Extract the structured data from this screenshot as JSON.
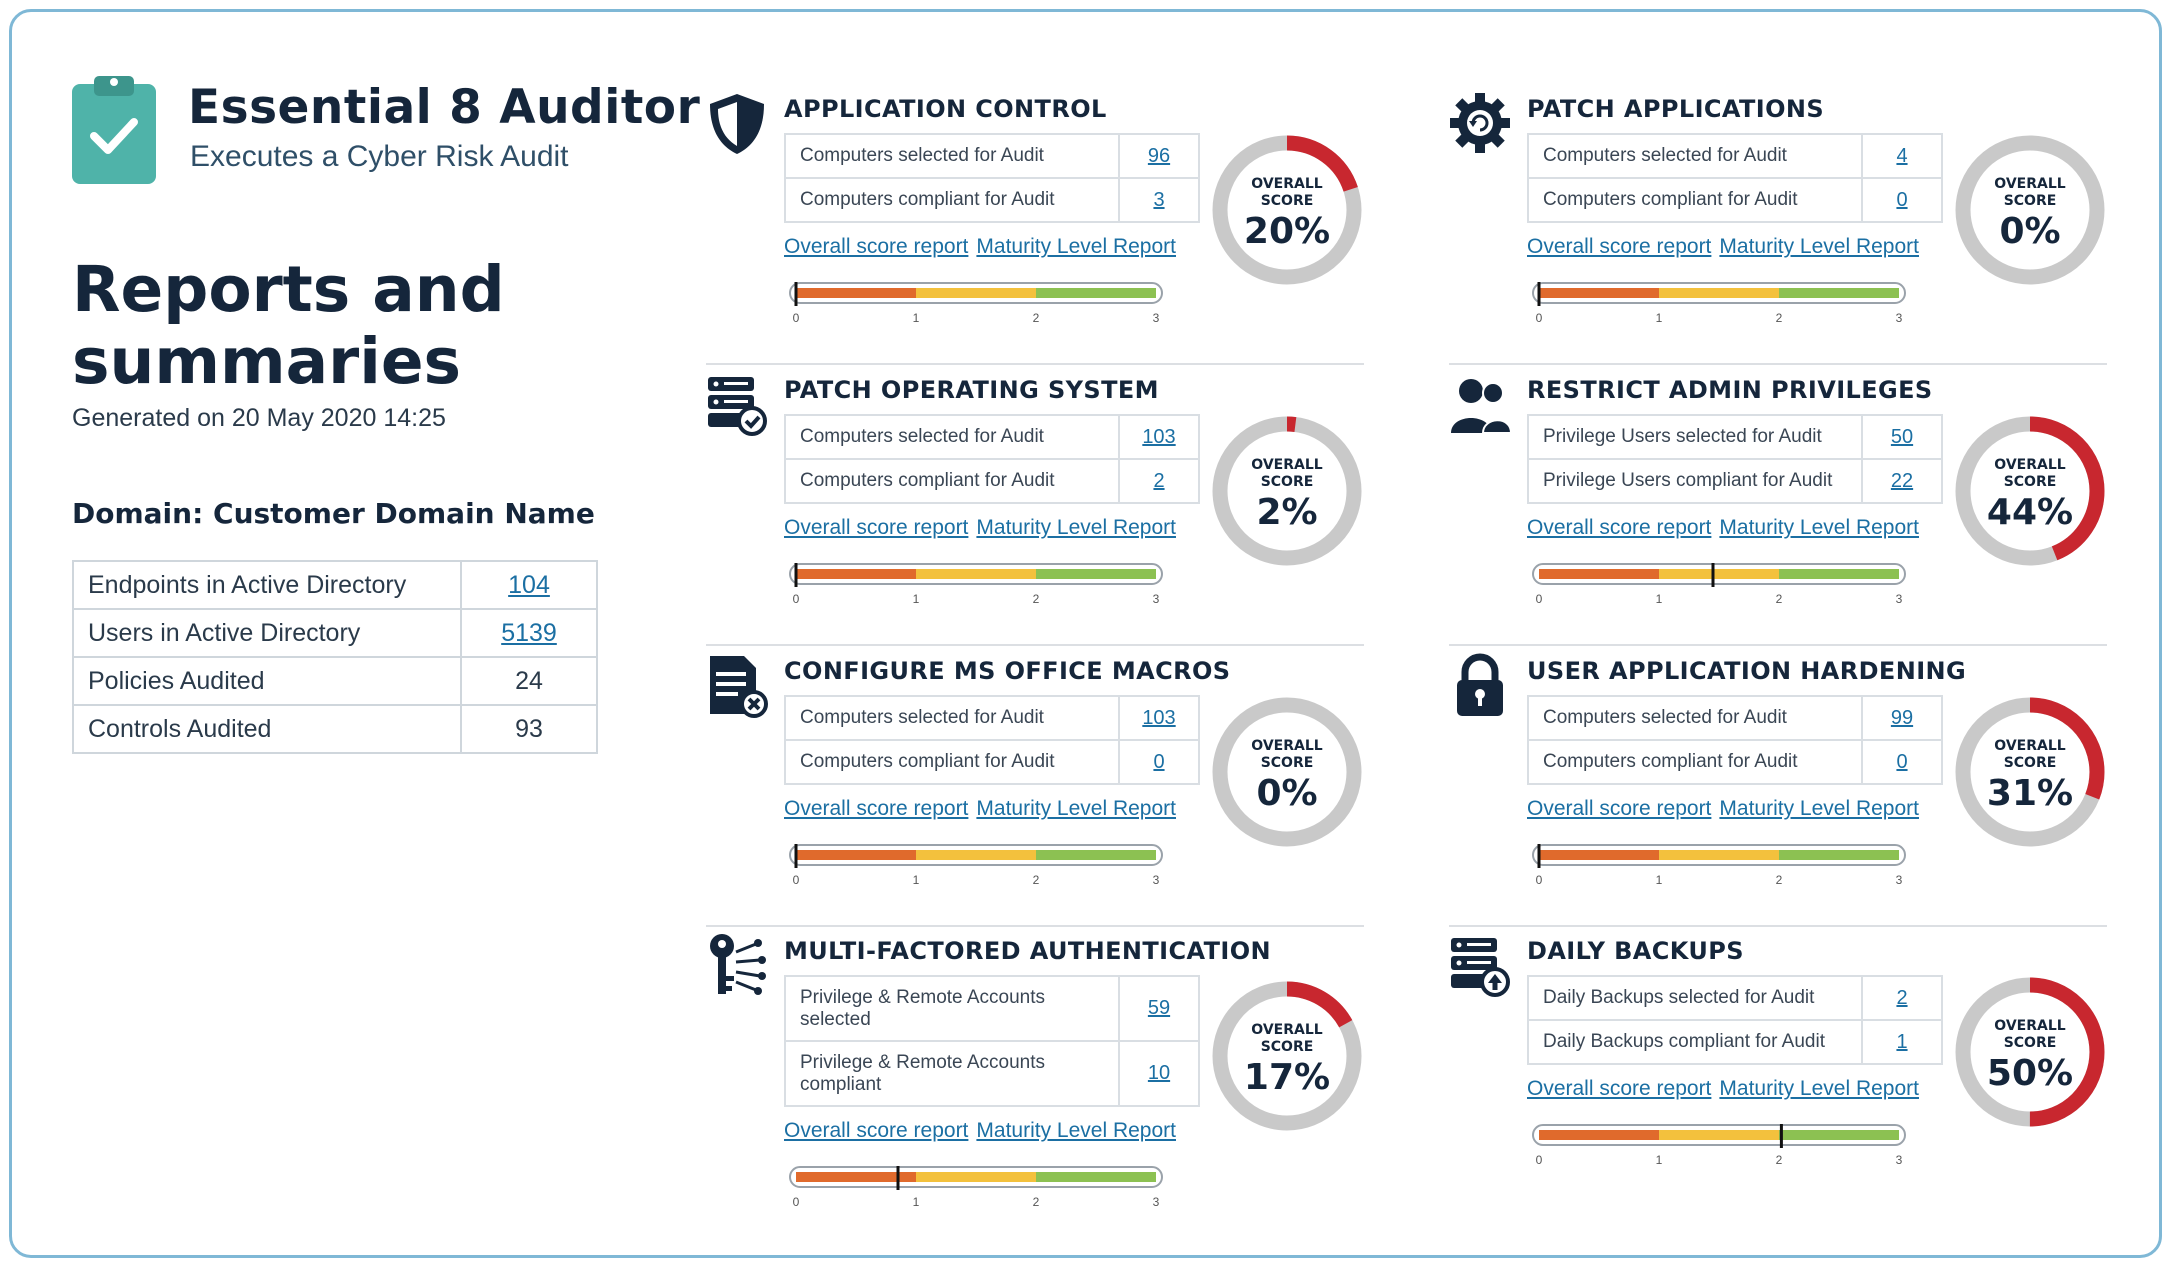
{
  "app": {
    "title": "Essential 8 Auditor",
    "subtitle": "Executes a Cyber Risk Audit",
    "logo_icon": "clipboard-check-icon",
    "brand_color": "#4fb3a9"
  },
  "report": {
    "title": "Reports and summaries",
    "generated": "Generated on 20 May 2020 14:25",
    "domain": "Domain: Customer Domain Name"
  },
  "summary": [
    {
      "label": "Endpoints in Active Directory",
      "value": "104",
      "link": true
    },
    {
      "label": "Users in Active Directory",
      "value": "5139",
      "link": true
    },
    {
      "label": "Policies Audited",
      "value": "24",
      "link": false
    },
    {
      "label": "Controls Audited",
      "value": "93",
      "link": false
    }
  ],
  "labels": {
    "overall_score_report": "Overall score report",
    "maturity_level_report": "Maturity Level Report",
    "donut_line1": "OVERALL",
    "donut_line2": "SCORE",
    "scale_ticks": [
      "0",
      "1",
      "2",
      "3"
    ]
  },
  "colors": {
    "score_red": "#c8272f",
    "score_track": "#c9c9c9",
    "scale_red": "#e06a2c",
    "scale_yellow": "#f3c13d",
    "scale_green": "#8cc152"
  },
  "controls": [
    {
      "title": "APPLICATION CONTROL",
      "icon": "shield-icon",
      "rows": [
        {
          "label": "Computers selected for Audit",
          "value": "96"
        },
        {
          "label": "Computers compliant for Audit",
          "value": "3"
        }
      ],
      "score": "20%",
      "score_value": 20,
      "maturity": 0
    },
    {
      "title": "PATCH APPLICATIONS",
      "icon": "gear-refresh-icon",
      "rows": [
        {
          "label": "Computers selected for Audit",
          "value": "4"
        },
        {
          "label": "Computers compliant for Audit",
          "value": "0"
        }
      ],
      "score": "0%",
      "score_value": 0,
      "maturity": 0
    },
    {
      "title": "PATCH OPERATING SYSTEM",
      "icon": "server-check-icon",
      "rows": [
        {
          "label": "Computers selected for Audit",
          "value": "103"
        },
        {
          "label": "Computers compliant for Audit",
          "value": "2"
        }
      ],
      "score": "2%",
      "score_value": 2,
      "maturity": 0
    },
    {
      "title": "RESTRICT ADMIN PRIVILEGES",
      "icon": "users-icon",
      "rows": [
        {
          "label": "Privilege Users selected for Audit",
          "value": "50"
        },
        {
          "label": "Privilege Users compliant for Audit",
          "value": "22"
        }
      ],
      "score": "44%",
      "score_value": 44,
      "maturity": 1.45
    },
    {
      "title": "CONFIGURE MS OFFICE MACROS",
      "icon": "document-block-icon",
      "rows": [
        {
          "label": "Computers selected for Audit",
          "value": "103"
        },
        {
          "label": "Computers compliant for Audit",
          "value": "0"
        }
      ],
      "score": "0%",
      "score_value": 0,
      "maturity": 0
    },
    {
      "title": "USER APPLICATION HARDENING",
      "icon": "lock-icon",
      "rows": [
        {
          "label": "Computers selected for Audit",
          "value": "99"
        },
        {
          "label": "Computers compliant for Audit",
          "value": "0"
        }
      ],
      "score": "31%",
      "score_value": 31,
      "maturity": 0
    },
    {
      "title": "MULTI-FACTORED AUTHENTICATION",
      "icon": "key-network-icon",
      "rows": [
        {
          "label": "Privilege & Remote Accounts selected",
          "value": "59"
        },
        {
          "label": "Privilege & Remote Accounts compliant",
          "value": "10"
        }
      ],
      "score": "17%",
      "score_value": 17,
      "maturity": 0.85
    },
    {
      "title": "DAILY BACKUPS",
      "icon": "server-upload-icon",
      "rows": [
        {
          "label": "Daily Backups selected for Audit",
          "value": "2"
        },
        {
          "label": "Daily Backups compliant for Audit",
          "value": "1"
        }
      ],
      "score": "50%",
      "score_value": 50,
      "maturity": 2.02
    }
  ]
}
